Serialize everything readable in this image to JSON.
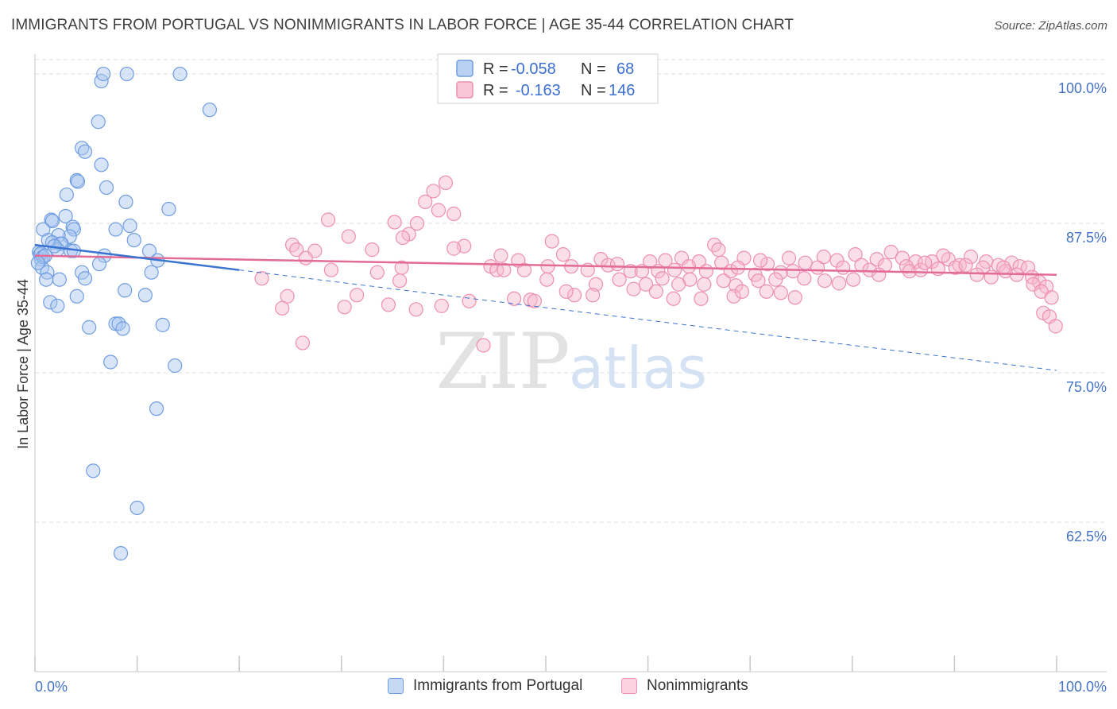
{
  "title": "IMMIGRANTS FROM PORTUGAL VS NONIMMIGRANTS IN LABOR FORCE | AGE 35-44 CORRELATION CHART",
  "source": "Source: ZipAtlas.com",
  "watermark": {
    "zip": "ZIP",
    "atlas": "atlas"
  },
  "legend": {
    "rows": [
      {
        "r_label": "R =",
        "r_value": "-0.058",
        "n_label": "N =",
        "n_value": "68"
      },
      {
        "r_label": "R =",
        "r_value": "-0.163",
        "n_label": "N =",
        "n_value": "146"
      }
    ]
  },
  "bottom_legend": {
    "series1": "Immigrants from Portugal",
    "series2": "Nonimmigrants"
  },
  "colors": {
    "blue_fill": "#a9c6f0",
    "blue_stroke": "#6f9de0",
    "blue_line": "#3a73d0",
    "pink_fill": "#f7b8cd",
    "pink_stroke": "#ec8fb0",
    "pink_line": "#e26b98",
    "grid": "#dcdcdc",
    "tick_text": "#4472c4"
  },
  "chart_data": {
    "type": "scatter",
    "title": "IMMIGRANTS FROM PORTUGAL VS NONIMMIGRANTS IN LABOR FORCE | AGE 35-44 CORRELATION CHART",
    "xlabel": "",
    "ylabel": "In Labor Force | Age 35-44",
    "xlim": [
      0,
      100
    ],
    "ylim": [
      50,
      101.2
    ],
    "x_tick_labels": [
      "0.0%",
      "100.0%"
    ],
    "y_ticks": [
      62.5,
      75.0,
      87.5,
      100.0
    ],
    "y_tick_labels": [
      "62.5%",
      "75.0%",
      "87.5%",
      "100.0%"
    ],
    "grid": true,
    "series": [
      {
        "name": "Immigrants from Portugal",
        "R": -0.058,
        "N": 68,
        "trend": {
          "x0": 0,
          "y0": 85.7,
          "x1": 20,
          "y1": 83.6,
          "dashed_to_x": 100,
          "dashed_to_y": 75.2
        },
        "points": [
          [
            6.5,
            99.4
          ],
          [
            6.7,
            100.0
          ],
          [
            9.0,
            100.0
          ],
          [
            14.2,
            100.0
          ],
          [
            17.1,
            97.0
          ],
          [
            6.2,
            96.0
          ],
          [
            4.6,
            93.8
          ],
          [
            4.9,
            93.5
          ],
          [
            6.5,
            92.4
          ],
          [
            4.1,
            91.1
          ],
          [
            4.2,
            91.0
          ],
          [
            7.0,
            90.5
          ],
          [
            3.1,
            89.9
          ],
          [
            8.9,
            89.3
          ],
          [
            13.1,
            88.7
          ],
          [
            3.0,
            88.1
          ],
          [
            1.6,
            87.8
          ],
          [
            1.7,
            87.7
          ],
          [
            0.8,
            87.0
          ],
          [
            3.7,
            87.2
          ],
          [
            3.8,
            87.0
          ],
          [
            7.9,
            87.0
          ],
          [
            9.3,
            87.3
          ],
          [
            3.4,
            86.4
          ],
          [
            2.3,
            86.5
          ],
          [
            1.3,
            86.1
          ],
          [
            1.7,
            85.9
          ],
          [
            2.5,
            85.8
          ],
          [
            2.6,
            85.8
          ],
          [
            9.7,
            86.1
          ],
          [
            0.4,
            85.1
          ],
          [
            0.5,
            84.9
          ],
          [
            0.6,
            84.5
          ],
          [
            3.5,
            85.2
          ],
          [
            11.2,
            85.2
          ],
          [
            2.2,
            85.3
          ],
          [
            3.8,
            85.2
          ],
          [
            6.8,
            84.8
          ],
          [
            12.0,
            84.4
          ],
          [
            6.3,
            84.1
          ],
          [
            0.7,
            83.8
          ],
          [
            1.2,
            83.4
          ],
          [
            4.6,
            83.4
          ],
          [
            11.4,
            83.4
          ],
          [
            1.1,
            82.8
          ],
          [
            2.4,
            82.8
          ],
          [
            4.9,
            82.9
          ],
          [
            8.8,
            81.9
          ],
          [
            4.1,
            81.4
          ],
          [
            10.8,
            81.5
          ],
          [
            1.5,
            80.9
          ],
          [
            2.2,
            80.6
          ],
          [
            7.9,
            79.1
          ],
          [
            8.2,
            79.1
          ],
          [
            5.3,
            78.8
          ],
          [
            8.6,
            78.7
          ],
          [
            12.5,
            79.0
          ],
          [
            7.4,
            75.9
          ],
          [
            13.7,
            75.6
          ],
          [
            11.9,
            72.0
          ],
          [
            5.7,
            66.8
          ],
          [
            10.0,
            63.7
          ],
          [
            8.4,
            59.9
          ],
          [
            0.6,
            85.0
          ],
          [
            0.8,
            84.7
          ],
          [
            1.0,
            84.8
          ],
          [
            1.9,
            85.6
          ],
          [
            0.3,
            84.2
          ]
        ]
      },
      {
        "name": "Nonimmigrants",
        "R": -0.163,
        "N": 146,
        "trend": {
          "x0": 0,
          "y0": 84.8,
          "x1": 100,
          "y1": 83.2
        },
        "points": [
          [
            40.2,
            90.9
          ],
          [
            39.0,
            90.2
          ],
          [
            38.2,
            89.3
          ],
          [
            39.5,
            88.6
          ],
          [
            41.0,
            88.3
          ],
          [
            28.7,
            87.8
          ],
          [
            35.2,
            87.6
          ],
          [
            37.4,
            87.5
          ],
          [
            36.6,
            86.6
          ],
          [
            30.7,
            86.4
          ],
          [
            36.0,
            86.3
          ],
          [
            50.6,
            86.0
          ],
          [
            25.2,
            85.7
          ],
          [
            42.0,
            85.6
          ],
          [
            25.6,
            85.3
          ],
          [
            27.4,
            85.2
          ],
          [
            33.0,
            85.3
          ],
          [
            41.0,
            85.4
          ],
          [
            66.5,
            85.7
          ],
          [
            26.5,
            84.6
          ],
          [
            33.5,
            83.4
          ],
          [
            29.0,
            83.6
          ],
          [
            35.9,
            83.8
          ],
          [
            44.6,
            83.9
          ],
          [
            45.6,
            84.8
          ],
          [
            47.3,
            84.4
          ],
          [
            51.7,
            84.9
          ],
          [
            55.4,
            84.5
          ],
          [
            60.2,
            84.3
          ],
          [
            61.7,
            84.4
          ],
          [
            63.3,
            84.6
          ],
          [
            65.0,
            84.3
          ],
          [
            67.2,
            84.2
          ],
          [
            69.4,
            84.6
          ],
          [
            71.7,
            84.1
          ],
          [
            75.4,
            84.2
          ],
          [
            77.2,
            84.7
          ],
          [
            78.5,
            84.4
          ],
          [
            80.3,
            84.9
          ],
          [
            82.4,
            84.5
          ],
          [
            83.8,
            85.1
          ],
          [
            84.9,
            84.6
          ],
          [
            86.2,
            84.3
          ],
          [
            87.8,
            84.3
          ],
          [
            89.4,
            84.5
          ],
          [
            90.5,
            84.0
          ],
          [
            91.6,
            84.7
          ],
          [
            93.1,
            84.3
          ],
          [
            94.3,
            84.0
          ],
          [
            95.6,
            84.2
          ],
          [
            96.4,
            83.9
          ],
          [
            97.2,
            83.8
          ],
          [
            45.2,
            83.6
          ],
          [
            45.9,
            83.6
          ],
          [
            47.9,
            83.6
          ],
          [
            50.2,
            83.9
          ],
          [
            52.5,
            83.9
          ],
          [
            54.1,
            83.6
          ],
          [
            56.1,
            84.0
          ],
          [
            57.0,
            84.1
          ],
          [
            58.3,
            83.5
          ],
          [
            59.4,
            83.5
          ],
          [
            61.0,
            83.5
          ],
          [
            62.6,
            83.6
          ],
          [
            64.0,
            83.9
          ],
          [
            65.7,
            83.5
          ],
          [
            68.1,
            83.5
          ],
          [
            68.8,
            83.8
          ],
          [
            70.5,
            83.2
          ],
          [
            73.0,
            83.4
          ],
          [
            74.2,
            83.5
          ],
          [
            76.6,
            83.8
          ],
          [
            79.1,
            83.8
          ],
          [
            80.9,
            84.0
          ],
          [
            81.7,
            83.6
          ],
          [
            83.2,
            84.0
          ],
          [
            85.3,
            83.9
          ],
          [
            88.4,
            83.7
          ],
          [
            90.1,
            83.8
          ],
          [
            92.8,
            83.8
          ],
          [
            95.0,
            83.5
          ],
          [
            96.1,
            83.2
          ],
          [
            97.6,
            83.0
          ],
          [
            98.3,
            82.6
          ],
          [
            99.0,
            82.2
          ],
          [
            97.7,
            82.4
          ],
          [
            98.5,
            81.8
          ],
          [
            99.5,
            81.3
          ],
          [
            98.7,
            80.0
          ],
          [
            99.3,
            79.7
          ],
          [
            99.9,
            78.9
          ],
          [
            22.2,
            82.9
          ],
          [
            35.7,
            82.7
          ],
          [
            50.1,
            82.8
          ],
          [
            54.9,
            82.4
          ],
          [
            57.2,
            82.8
          ],
          [
            59.8,
            82.4
          ],
          [
            61.4,
            82.9
          ],
          [
            64.1,
            82.8
          ],
          [
            67.4,
            82.7
          ],
          [
            68.6,
            82.3
          ],
          [
            70.8,
            82.7
          ],
          [
            72.5,
            82.8
          ],
          [
            75.3,
            82.9
          ],
          [
            78.7,
            82.5
          ],
          [
            58.6,
            82.0
          ],
          [
            73.0,
            81.7
          ],
          [
            24.7,
            81.4
          ],
          [
            31.5,
            81.5
          ],
          [
            46.9,
            81.2
          ],
          [
            52.8,
            81.5
          ],
          [
            54.6,
            81.5
          ],
          [
            60.8,
            81.8
          ],
          [
            62.5,
            81.2
          ],
          [
            65.2,
            81.2
          ],
          [
            68.4,
            81.4
          ],
          [
            69.2,
            81.8
          ],
          [
            71.6,
            81.8
          ],
          [
            74.4,
            81.3
          ],
          [
            24.2,
            80.4
          ],
          [
            30.3,
            80.5
          ],
          [
            34.6,
            80.7
          ],
          [
            37.3,
            80.3
          ],
          [
            39.8,
            80.6
          ],
          [
            42.5,
            81.0
          ],
          [
            26.2,
            77.5
          ],
          [
            43.9,
            77.3
          ],
          [
            48.5,
            81.1
          ],
          [
            48.9,
            81.0
          ],
          [
            52.0,
            81.8
          ],
          [
            63.0,
            82.4
          ],
          [
            65.5,
            82.4
          ],
          [
            77.3,
            82.7
          ],
          [
            80.1,
            82.8
          ],
          [
            82.6,
            83.2
          ],
          [
            85.6,
            83.5
          ],
          [
            86.7,
            83.6
          ],
          [
            87.1,
            84.2
          ],
          [
            88.9,
            84.8
          ],
          [
            91.1,
            84.0
          ],
          [
            92.2,
            83.2
          ],
          [
            93.6,
            83.0
          ],
          [
            94.8,
            83.8
          ],
          [
            66.9,
            85.3
          ],
          [
            71.0,
            84.4
          ],
          [
            73.8,
            84.6
          ]
        ]
      }
    ]
  }
}
